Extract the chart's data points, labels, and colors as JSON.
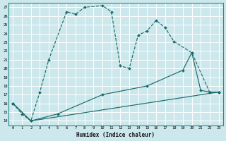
{
  "xlabel": "Humidex (Indice chaleur)",
  "background_color": "#cce8ec",
  "grid_color": "#ffffff",
  "line_color": "#1a6b6b",
  "xlim": [
    -0.5,
    23.5
  ],
  "ylim": [
    13.5,
    27.5
  ],
  "xtick_labels": [
    "0",
    "1",
    "2",
    "3",
    "4",
    "5",
    "6",
    "7",
    "8",
    "9",
    "10",
    "11",
    "12",
    "13",
    "14",
    "15",
    "16",
    "17",
    "18",
    "19",
    "20",
    "21",
    "22",
    "23"
  ],
  "ytick_labels": [
    "14",
    "15",
    "16",
    "17",
    "18",
    "19",
    "20",
    "21",
    "22",
    "23",
    "24",
    "25",
    "26",
    "27"
  ],
  "series1_x": [
    0,
    1,
    2,
    3,
    4,
    6,
    7,
    8,
    10,
    11,
    12,
    13,
    14,
    15,
    16,
    17,
    18,
    20,
    22,
    23
  ],
  "series1_y": [
    16.0,
    14.8,
    14.0,
    17.3,
    21.0,
    26.5,
    26.2,
    27.0,
    27.2,
    26.5,
    20.3,
    20.0,
    23.8,
    24.3,
    25.5,
    24.7,
    23.1,
    21.8,
    17.3,
    17.3
  ],
  "series2_x": [
    0,
    2,
    23
  ],
  "series2_y": [
    16.0,
    14.0,
    17.3
  ],
  "series3_x": [
    0,
    2,
    5,
    10,
    15,
    19,
    20,
    21,
    22,
    23
  ],
  "series3_y": [
    16.0,
    14.0,
    14.8,
    17.0,
    18.0,
    19.8,
    21.8,
    17.5,
    17.3,
    17.3
  ]
}
